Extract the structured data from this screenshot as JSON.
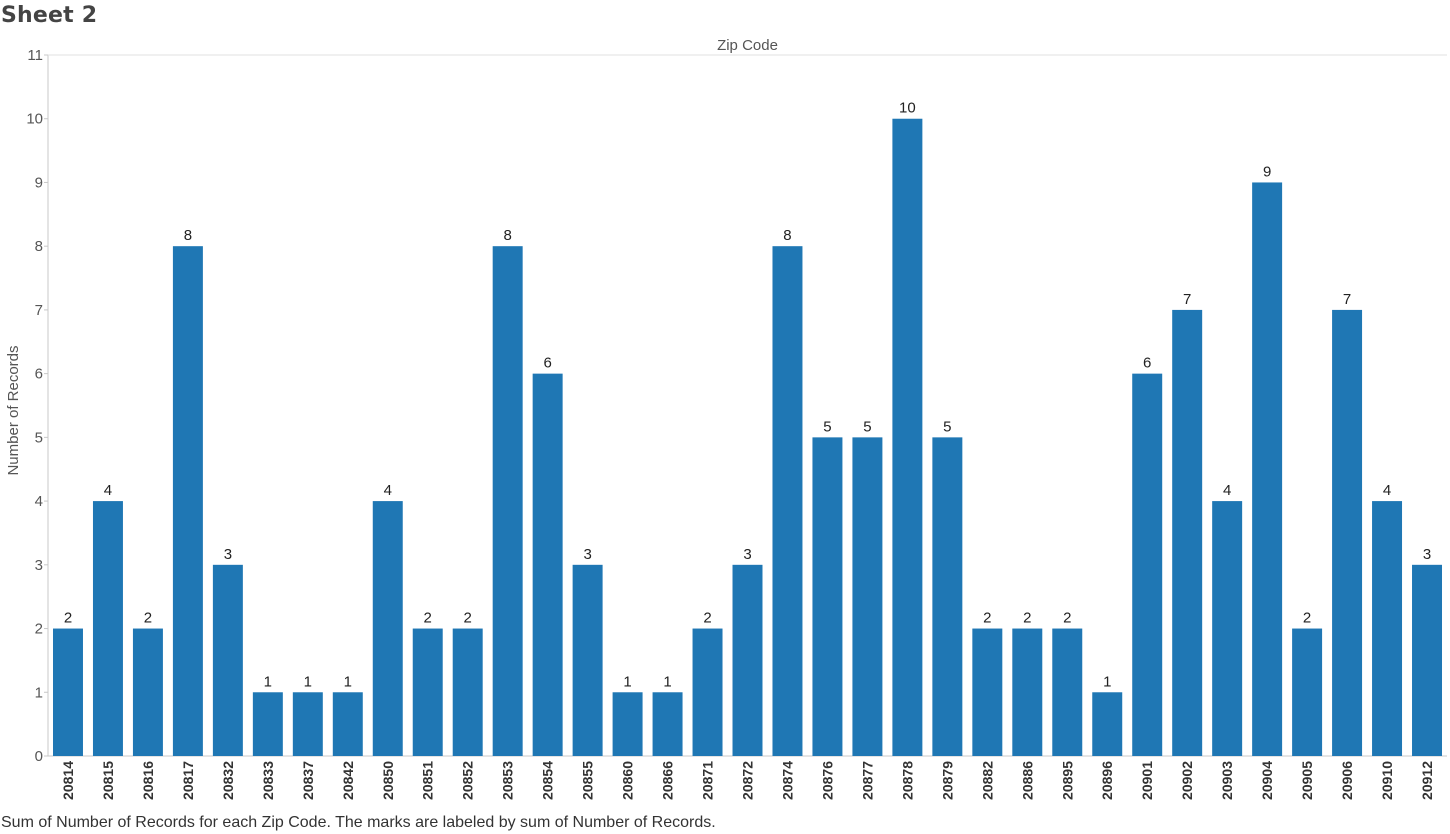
{
  "sheet": {
    "title": "Sheet 2",
    "caption": "Sum of Number of Records for each Zip Code.  The marks are labeled by sum of Number of Records."
  },
  "colors": {
    "bar": "#1f77b4",
    "axis": "#c8c8c8",
    "text": "#555555"
  },
  "chart_data": {
    "type": "bar",
    "title": "Zip Code",
    "xlabel": "Zip Code",
    "ylabel": "Number of Records",
    "ylim": [
      0,
      11
    ],
    "yticks": [
      0,
      1,
      2,
      3,
      4,
      5,
      6,
      7,
      8,
      9,
      10,
      11
    ],
    "grid": false,
    "categories": [
      "20814",
      "20815",
      "20816",
      "20817",
      "20832",
      "20833",
      "20837",
      "20842",
      "20850",
      "20851",
      "20852",
      "20853",
      "20854",
      "20855",
      "20860",
      "20866",
      "20871",
      "20872",
      "20874",
      "20876",
      "20877",
      "20878",
      "20879",
      "20882",
      "20886",
      "20895",
      "20896",
      "20901",
      "20902",
      "20903",
      "20904",
      "20905",
      "20906",
      "20910",
      "20912"
    ],
    "values": [
      2,
      4,
      2,
      8,
      3,
      1,
      1,
      1,
      4,
      2,
      2,
      8,
      6,
      3,
      1,
      1,
      2,
      3,
      8,
      5,
      5,
      10,
      5,
      2,
      2,
      2,
      1,
      6,
      7,
      4,
      9,
      2,
      7,
      4,
      3
    ]
  }
}
